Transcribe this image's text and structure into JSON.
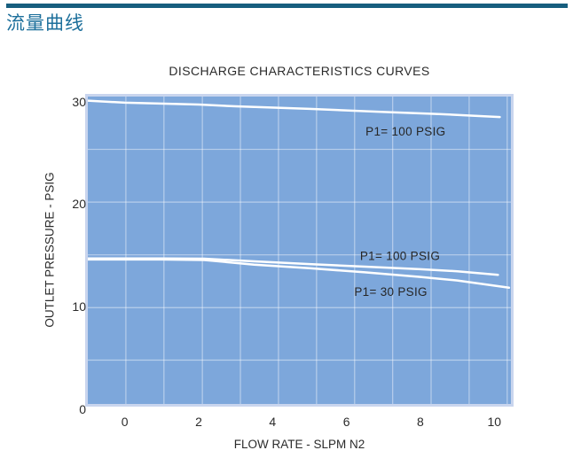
{
  "header": {
    "title": "流量曲线",
    "bar_color": "#175E7E",
    "text_color": "#1C6F9B"
  },
  "chart_data": {
    "type": "line",
    "title": "DISCHARGE CHARACTERISTICS CURVES",
    "xlabel": "FLOW RATE - SLPM N2",
    "ylabel": "OUTLET PRESSURE - PSIG",
    "xlim": [
      -1,
      10.45
    ],
    "ylim": [
      0.5,
      30.5
    ],
    "x_ticks": [
      0,
      2,
      4,
      6,
      8,
      10
    ],
    "y_ticks": [
      30,
      20,
      10,
      0
    ],
    "grid": true,
    "x_gridlines": [
      0.03,
      1.06,
      2.1,
      3.13,
      4.16,
      5.19,
      6.22,
      7.25,
      8.29,
      9.32,
      10.35
    ],
    "y_gridlines": [
      25.35,
      20.2,
      15.05,
      9.9,
      4.78
    ],
    "plot_bg": "#7DA7DB",
    "plot_border_color": "#C9D5EE",
    "gridline_color": "rgba(255,255,255,0.45)",
    "line_color": "#FFFFFF",
    "legend_position": "inline-annotations",
    "series": [
      {
        "name": "P1= 100 PSIG",
        "points": [
          [
            -1,
            30.1
          ],
          [
            0,
            29.9
          ],
          [
            2,
            29.72
          ],
          [
            3,
            29.55
          ],
          [
            5,
            29.3
          ],
          [
            7,
            29.0
          ],
          [
            8.5,
            28.8
          ],
          [
            10.15,
            28.5
          ]
        ]
      },
      {
        "name": "P1= 100 PSIG",
        "points": [
          [
            -1,
            14.7
          ],
          [
            1,
            14.7
          ],
          [
            2.15,
            14.68
          ],
          [
            3.5,
            14.42
          ],
          [
            5,
            14.15
          ],
          [
            6.5,
            13.9
          ],
          [
            8,
            13.65
          ],
          [
            9,
            13.45
          ],
          [
            10.1,
            13.1
          ]
        ]
      },
      {
        "name": "P1= 30 PSIG",
        "points": [
          [
            -1,
            14.6
          ],
          [
            1,
            14.6
          ],
          [
            2.15,
            14.55
          ],
          [
            3.5,
            14.1
          ],
          [
            5,
            13.75
          ],
          [
            6.5,
            13.35
          ],
          [
            8,
            12.9
          ],
          [
            9,
            12.55
          ],
          [
            10.4,
            11.85
          ]
        ]
      }
    ],
    "annotations": [
      {
        "text": "P1= 100 PSIG",
        "x": 7.6,
        "y": 27.1
      },
      {
        "text": "P1= 100 PSIG",
        "x": 7.45,
        "y": 14.95
      },
      {
        "text": "P1= 30 PSIG",
        "x": 7.2,
        "y": 11.45
      }
    ]
  }
}
